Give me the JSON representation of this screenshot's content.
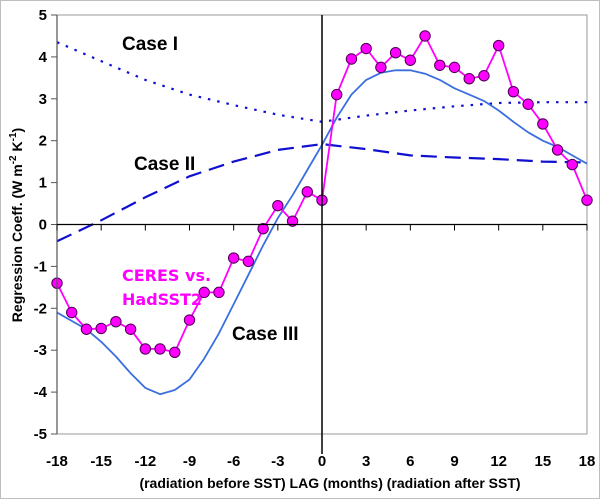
{
  "chart_data": {
    "type": "line",
    "title": "",
    "xlabel": "(radiation before SST)  LAG (months)   (radiation after SST)",
    "ylabel": "Regression Coeff. (W m-2 K-1)",
    "ylabel_parts": {
      "main": "Regression Coeff. (W m",
      "sup1": "-2",
      "mid": " K",
      "sup2": "-1",
      "end": ")"
    },
    "xlim": [
      -18,
      18
    ],
    "ylim": [
      -5,
      5
    ],
    "x_ticks": [
      -18,
      -15,
      -12,
      -9,
      -6,
      -3,
      0,
      3,
      6,
      9,
      12,
      15,
      18
    ],
    "x_tick_labels": [
      "-18",
      "-15",
      "-12",
      "-9",
      "-6",
      "-3",
      "0",
      "3",
      "6",
      "9",
      "12",
      "15",
      "18"
    ],
    "y_ticks": [
      5,
      4,
      3,
      2,
      1,
      0,
      -1,
      -2,
      -3,
      -4,
      -5
    ],
    "y_tick_labels": [
      "5",
      "4",
      "3",
      "2",
      "1",
      "0",
      "-1",
      "-2",
      "-3",
      "-4",
      "-5"
    ],
    "grid": false,
    "colors": {
      "ceres": "#ff00ff",
      "case3": "#3a6fe0",
      "case12": "#1010d0"
    },
    "annotations": {
      "case1": "Case I",
      "case2": "Case II",
      "case3": "Case III",
      "ceres_line1": "CERES vs.",
      "ceres_line2": "HadSST2"
    },
    "series": [
      {
        "name": "CERES vs. HadSST2",
        "style": "line-markers",
        "x": [
          -18,
          -17,
          -16,
          -15,
          -14,
          -13,
          -12,
          -11,
          -10,
          -9,
          -8,
          -7,
          -6,
          -5,
          -4,
          -3,
          -2,
          -1,
          0,
          1,
          2,
          3,
          4,
          5,
          6,
          7,
          8,
          9,
          10,
          11,
          12,
          13,
          14,
          15,
          16,
          17,
          18
        ],
        "values": [
          -1.4,
          -2.1,
          -2.5,
          -2.48,
          -2.32,
          -2.5,
          -2.97,
          -2.97,
          -3.05,
          -2.28,
          -1.62,
          -1.62,
          -0.8,
          -0.88,
          -0.1,
          0.45,
          0.08,
          0.78,
          0.58,
          3.1,
          3.95,
          4.2,
          3.75,
          4.1,
          3.92,
          4.5,
          3.8,
          3.75,
          3.48,
          3.55,
          4.27,
          3.17,
          2.87,
          2.4,
          1.78,
          1.43,
          0.58
        ]
      },
      {
        "name": "Case I",
        "style": "dotted",
        "x": [
          -18,
          -15,
          -12,
          -9,
          -6,
          -3,
          0,
          3,
          6,
          9,
          12,
          15,
          18
        ],
        "values": [
          4.35,
          3.9,
          3.45,
          3.1,
          2.85,
          2.62,
          2.45,
          2.6,
          2.72,
          2.82,
          2.9,
          2.92,
          2.92
        ]
      },
      {
        "name": "Case II",
        "style": "dashed",
        "x": [
          -18,
          -15,
          -12,
          -9,
          -6,
          -3,
          0,
          3,
          6,
          9,
          12,
          15,
          18
        ],
        "values": [
          -0.4,
          0.1,
          0.65,
          1.15,
          1.5,
          1.78,
          1.92,
          1.8,
          1.65,
          1.6,
          1.56,
          1.5,
          1.48
        ]
      },
      {
        "name": "Case III",
        "style": "solid",
        "x": [
          -18,
          -17,
          -16,
          -15,
          -14,
          -13,
          -12,
          -11,
          -10,
          -9,
          -8,
          -7,
          -6,
          -5,
          -4,
          -3,
          -2,
          -1,
          0,
          1,
          2,
          3,
          4,
          5,
          6,
          7,
          8,
          9,
          10,
          11,
          12,
          13,
          14,
          15,
          16,
          17,
          18
        ],
        "values": [
          -2.1,
          -2.3,
          -2.5,
          -2.8,
          -3.15,
          -3.55,
          -3.9,
          -4.05,
          -3.95,
          -3.7,
          -3.2,
          -2.6,
          -1.9,
          -1.2,
          -0.5,
          0.15,
          0.7,
          1.3,
          1.9,
          2.55,
          3.1,
          3.45,
          3.62,
          3.68,
          3.68,
          3.6,
          3.45,
          3.25,
          3.1,
          2.95,
          2.72,
          2.45,
          2.2,
          2.0,
          1.85,
          1.65,
          1.45
        ]
      }
    ]
  }
}
